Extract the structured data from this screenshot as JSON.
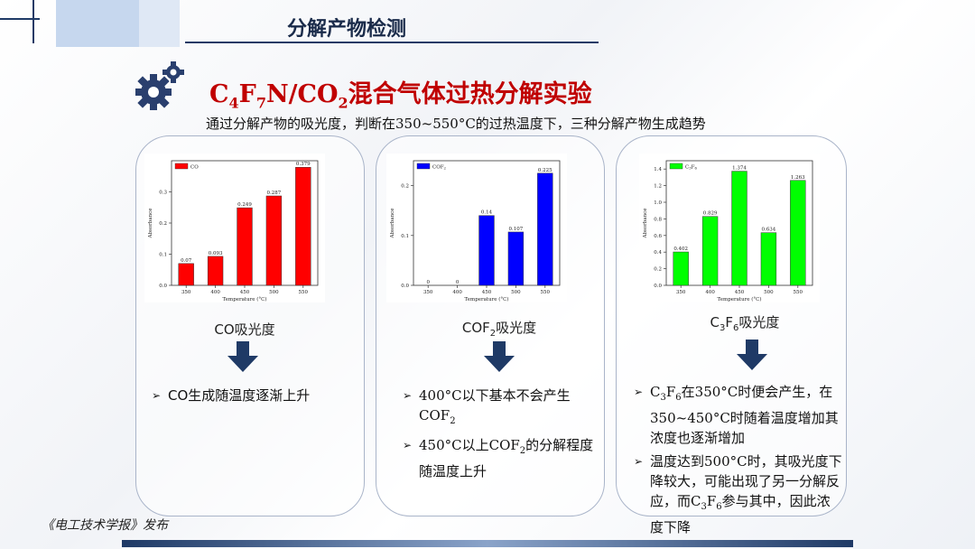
{
  "header": {
    "title": "分解产物检测"
  },
  "heading": {
    "pre": "C",
    "s1": "4",
    "f": "F",
    "s2": "7",
    "mid": "N/CO",
    "s3": "2",
    "rest": "混合气体过热分解实验"
  },
  "subtitle": "通过分解产物的吸光度，判断在350~550°C的过热温度下，三种分解产物生成趋势",
  "colors": {
    "co": "#ff0000",
    "cof2": "#0000ff",
    "c3f6": "#00ff00",
    "accent": "#c00000",
    "navy": "#1f3a66"
  },
  "chart_data": [
    {
      "type": "bar",
      "categories": [
        "350",
        "400",
        "450",
        "500",
        "550"
      ],
      "series": [
        {
          "name": "CO",
          "values": [
            0.07,
            0.093,
            0.249,
            0.287,
            0.379
          ]
        }
      ],
      "data_labels": [
        "0.07",
        "0.093",
        "0.249",
        "0.287",
        "0.379"
      ],
      "ylim": [
        0,
        0.4
      ],
      "yticks": [
        "0.0",
        "0.1",
        "0.2",
        "0.3"
      ],
      "xlabel": "Temperature (°C)",
      "ylabel": "Absorbance",
      "legend": "top-left"
    },
    {
      "type": "bar",
      "categories": [
        "350",
        "400",
        "450",
        "500",
        "550"
      ],
      "series": [
        {
          "name": "COF",
          "values": [
            0,
            0,
            0.14,
            0.107,
            0.225
          ]
        }
      ],
      "data_labels": [
        "0",
        "0",
        "0.14",
        "0.107",
        "0.225"
      ],
      "ylim": [
        0,
        0.25
      ],
      "yticks": [
        "0.0",
        "0.1",
        "0.2"
      ],
      "xlabel": "Temperature (°C)",
      "ylabel": "Absorbance",
      "legend": "top-left"
    },
    {
      "type": "bar",
      "categories": [
        "350",
        "400",
        "450",
        "500",
        "550"
      ],
      "series": [
        {
          "name": "C3F6",
          "values": [
            0.402,
            0.829,
            1.374,
            0.634,
            1.263
          ]
        }
      ],
      "data_labels": [
        "0.402",
        "0.829",
        "1.374",
        "0.634",
        "1.263"
      ],
      "ylim": [
        0,
        1.5
      ],
      "yticks": [
        "0.0",
        "0.2",
        "0.4",
        "0.6",
        "0.8",
        "1.0",
        "1.2",
        "1.4"
      ],
      "xlabel": "Temperature (°C)",
      "ylabel": "Absorbance",
      "legend": "top-left"
    }
  ],
  "legend_cof2": {
    "main": "COF",
    "sub": "2"
  },
  "legend_c3f6": {
    "c": "C",
    "s1": "3",
    "f": "F",
    "s2": "6"
  },
  "captions": {
    "co": "CO吸光度",
    "cof2": {
      "main": "COF",
      "sub": "2",
      "rest": "吸光度"
    },
    "c3f6": {
      "c": "C",
      "s1": "3",
      "f": "F",
      "s2": "6",
      "rest": "吸光度"
    }
  },
  "bullets": {
    "co": [
      "CO生成随温度逐渐上升"
    ],
    "cof2": {
      "b1_a": "400°C以下基本不会产生COF",
      "b1_sub": "2",
      "b2_a": "450°C以上COF",
      "b2_sub": "2",
      "b2_b": "的分解程度随温度上升"
    },
    "c3f6": {
      "b1_c": "C",
      "b1_s1": "3",
      "b1_f": "F",
      "b1_s2": "6",
      "b1_rest": "在350°C时便会产生，在350~450°C时随着温度增加其浓度也逐渐增加",
      "b2_a": "温度达到500°C时，其吸光度下降较大，可能出现了另一分解反应，而C",
      "b2_s1": "3",
      "b2_f": "F",
      "b2_s2": "6",
      "b2_b": "参与其中，因此浓度下降"
    }
  },
  "footer": "《电工技术学报》发布"
}
